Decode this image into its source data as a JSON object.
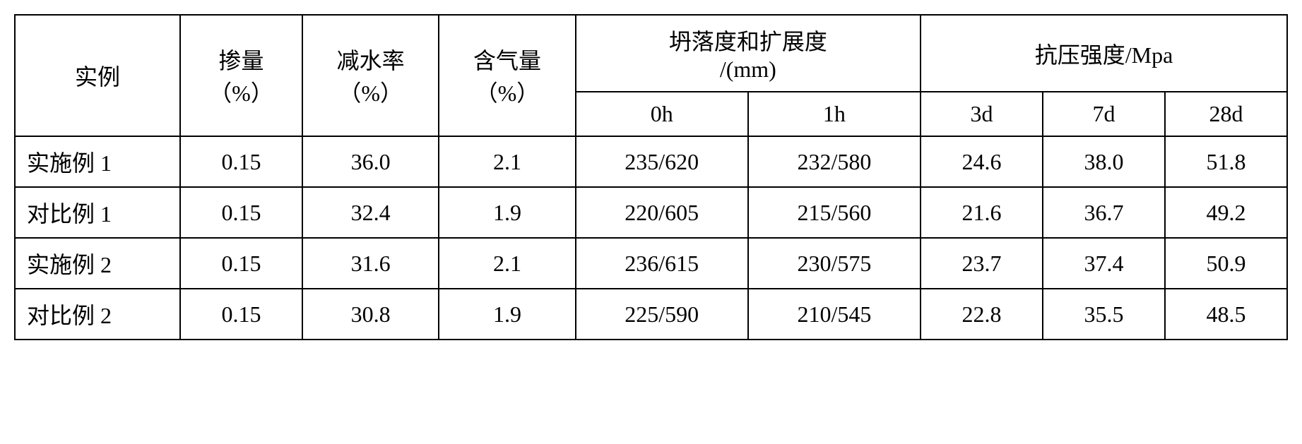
{
  "type": "table",
  "style": {
    "background_color": "#ffffff",
    "border_color": "#000000",
    "border_width": 2,
    "text_color": "#000000",
    "font_family": "SimSun",
    "font_size": 32,
    "cell_padding": 12
  },
  "headers": {
    "example": "实例",
    "dosage": "掺量",
    "dosage_unit": "（%）",
    "water_reduction": "减水率",
    "water_reduction_unit": "（%）",
    "air_content": "含气量",
    "air_content_unit": "（%）",
    "slump_spread": "坍落度和扩展度",
    "slump_spread_unit": "/(mm)",
    "strength": "抗压强度/Mpa",
    "time_0h": "0h",
    "time_1h": "1h",
    "time_3d": "3d",
    "time_7d": "7d",
    "time_28d": "28d"
  },
  "rows": [
    {
      "label": "实施例 1",
      "dosage": "0.15",
      "water_reduction": "36.0",
      "air_content": "2.1",
      "slump_0h": "235/620",
      "slump_1h": "232/580",
      "strength_3d": "24.6",
      "strength_7d": "38.0",
      "strength_28d": "51.8"
    },
    {
      "label": "对比例 1",
      "dosage": "0.15",
      "water_reduction": "32.4",
      "air_content": "1.9",
      "slump_0h": "220/605",
      "slump_1h": "215/560",
      "strength_3d": "21.6",
      "strength_7d": "36.7",
      "strength_28d": "49.2"
    },
    {
      "label": "实施例 2",
      "dosage": "0.15",
      "water_reduction": "31.6",
      "air_content": "2.1",
      "slump_0h": "236/615",
      "slump_1h": "230/575",
      "strength_3d": "23.7",
      "strength_7d": "37.4",
      "strength_28d": "50.9"
    },
    {
      "label": "对比例 2",
      "dosage": "0.15",
      "water_reduction": "30.8",
      "air_content": "1.9",
      "slump_0h": "225/590",
      "slump_1h": "210/545",
      "strength_3d": "22.8",
      "strength_7d": "35.5",
      "strength_28d": "48.5"
    }
  ]
}
